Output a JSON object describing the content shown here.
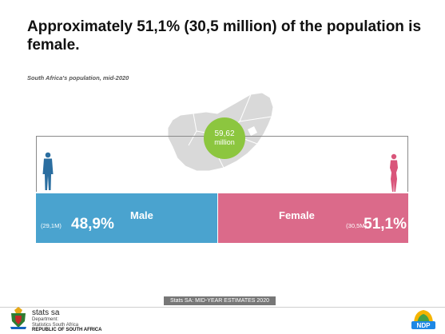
{
  "title": "Approximately 51,1% (30,5 million) of the population is female.",
  "subtitle": "South Africa's population, mid-2020",
  "population_circle": {
    "value": "59,62",
    "unit": "million"
  },
  "chart_data": {
    "type": "bar",
    "orientation": "horizontal-stacked",
    "title": "Approximately 51,1% (30,5 million) of the population is female.",
    "subtitle": "South Africa's population, mid-2020",
    "total_label": "59,62 million",
    "series": [
      {
        "name": "Male",
        "value": 48.9,
        "value_label": "48,9%",
        "count_label": "(29,1M)",
        "color": "#4aa3cf"
      },
      {
        "name": "Female",
        "value": 51.1,
        "value_label": "51,1%",
        "count_label": "(30,5M)",
        "color": "#db6a8a"
      }
    ],
    "xlim": [
      0,
      100
    ]
  },
  "footer": {
    "banner": "Stats SA: MID-YEAR ESTIMATES 2020",
    "logo_name": "stats sa",
    "dept_line1": "Department:",
    "dept_line2": "Statistics South Africa",
    "country": "REPUBLIC OF SOUTH AFRICA",
    "ndp_label": "NDP"
  },
  "colors": {
    "map": "#d9d9d9",
    "circle": "#8cc63f",
    "male": "#4aa3cf",
    "female": "#db6a8a",
    "male_icon": "#2b6ea0",
    "female_icon": "#d9557a"
  },
  "icons": {
    "male": "man-icon",
    "female": "woman-icon",
    "map": "south-africa-map",
    "crest": "coat-of-arms-icon",
    "ndp": "ndp-logo"
  }
}
